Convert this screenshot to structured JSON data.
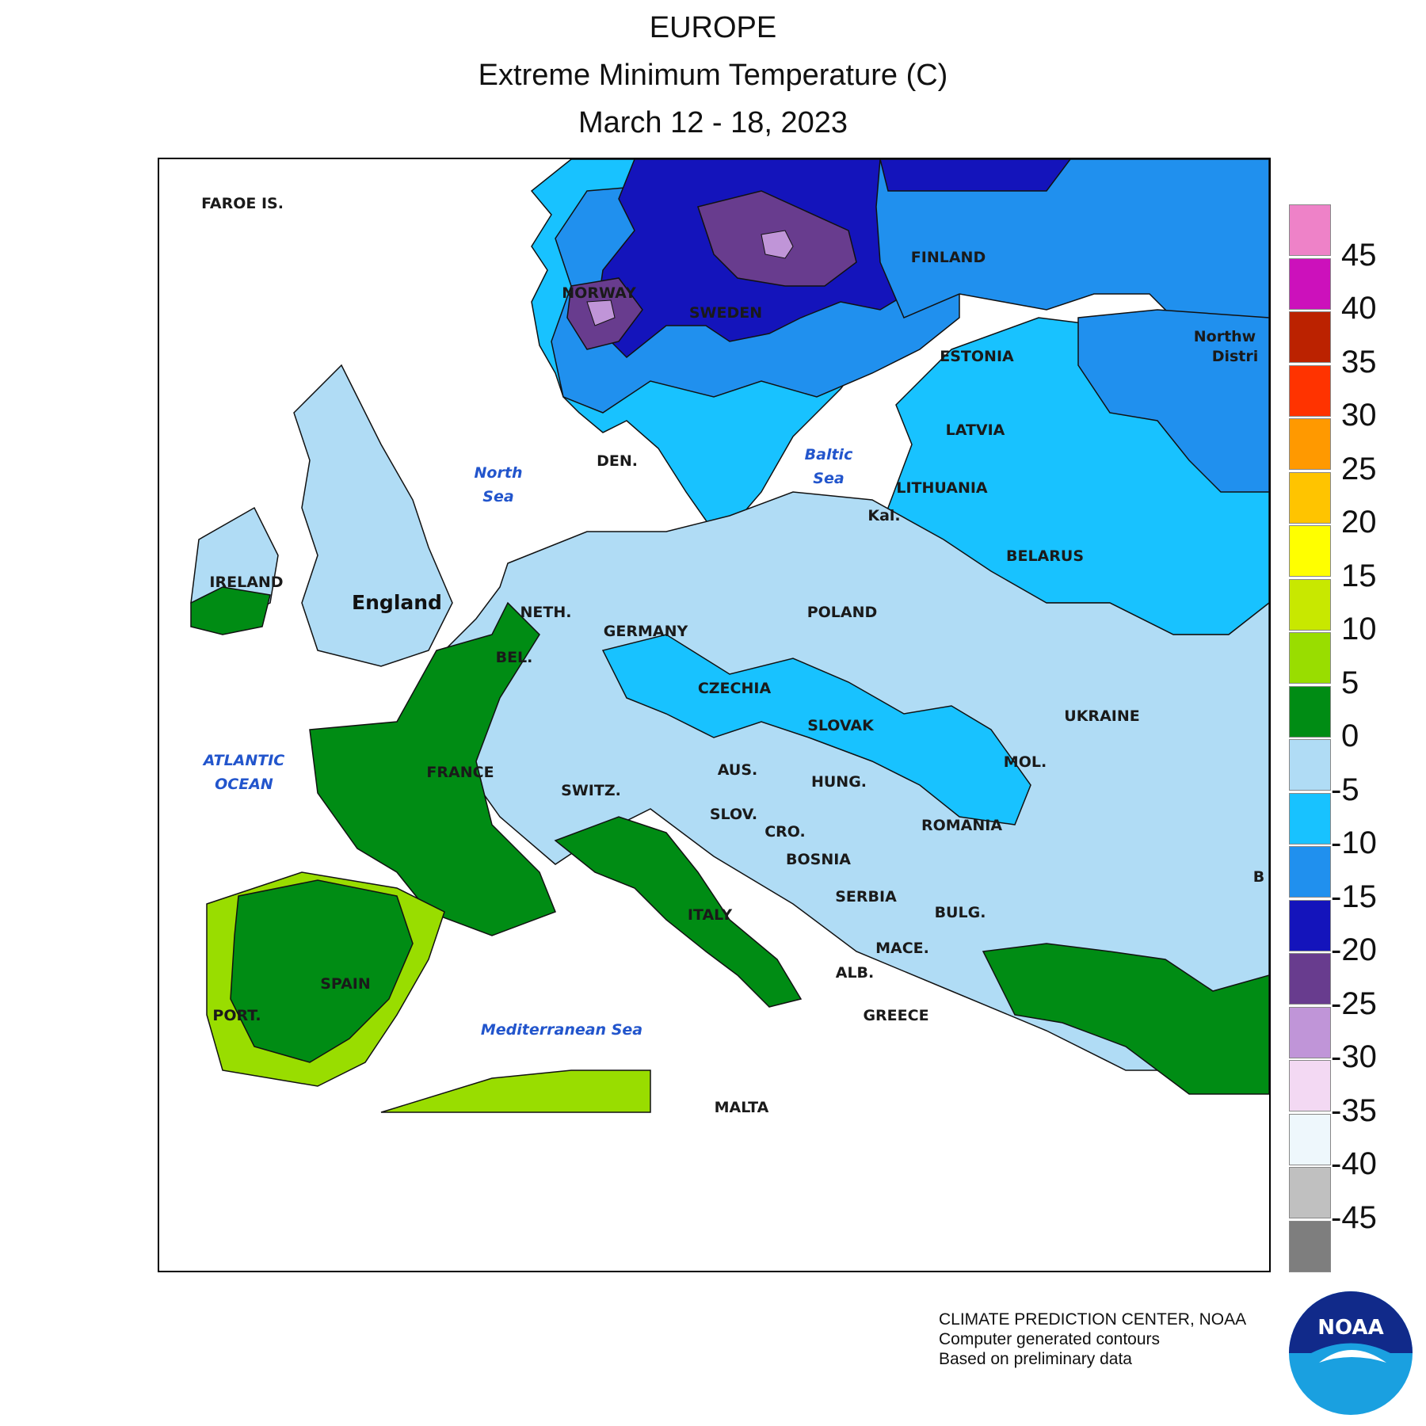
{
  "title": {
    "line1": "EUROPE",
    "line2": "Extreme Minimum Temperature (C)",
    "line3": "March 12 - 18, 2023"
  },
  "map_labels": {
    "countries": [
      "FAROE IS.",
      "NORWAY",
      "SWEDEN",
      "FINLAND",
      "ESTONIA",
      "LATVIA",
      "LITHUANIA",
      "Kal.",
      "BELARUS",
      "DEN.",
      "IRELAND",
      "England",
      "NETH.",
      "BEL.",
      "GERMANY",
      "POLAND",
      "CZECHIA",
      "SLOVAK",
      "UKRAINE",
      "MOL.",
      "FRANCE",
      "SWITZ.",
      "AUS.",
      "HUNG.",
      "ROMANIA",
      "SLOV.",
      "CRO.",
      "BOSNIA",
      "SERBIA",
      "BULG.",
      "MACE.",
      "ALB.",
      "GREECE",
      "ITALY",
      "SPAIN",
      "PORT.",
      "MALTA",
      "Northw",
      "Distri",
      "B"
    ],
    "seas": [
      "North",
      "Sea",
      "Baltic",
      "Sea",
      "ATLANTIC",
      "OCEAN",
      "Mediterranean Sea"
    ]
  },
  "legend": {
    "ticks": [
      "45",
      "40",
      "35",
      "30",
      "25",
      "20",
      "15",
      "10",
      "5",
      "0",
      "-5",
      "-10",
      "-15",
      "-20",
      "-25",
      "-30",
      "-35",
      "-40",
      "-45"
    ],
    "colors": [
      "#ee82c8",
      "#cc11bb",
      "#bb2200",
      "#ff3300",
      "#ff9900",
      "#ffc400",
      "#ffff00",
      "#c8e800",
      "#99dd00",
      "#008c14",
      "#b0dcf5",
      "#18c2ff",
      "#2090ee",
      "#1414bb",
      "#683c8e",
      "#c095d8",
      "#f3d9f3",
      "#eef7fc",
      "#c0c0c0",
      "#7e7e7e"
    ]
  },
  "map_fill_levels": {
    "warm_coast": "#99dd00",
    "mild": "#008c14",
    "cool": "#b0dcf5",
    "cold": "#18c2ff",
    "colder": "#2090ee",
    "very_cold": "#1414bb",
    "extreme": "#683c8e",
    "core": "#c095d8"
  },
  "credits": {
    "line1": "CLIMATE PREDICTION CENTER, NOAA",
    "line2": "Computer generated contours",
    "line3": "Based on preliminary data"
  },
  "logo": {
    "text": "NOAA"
  }
}
